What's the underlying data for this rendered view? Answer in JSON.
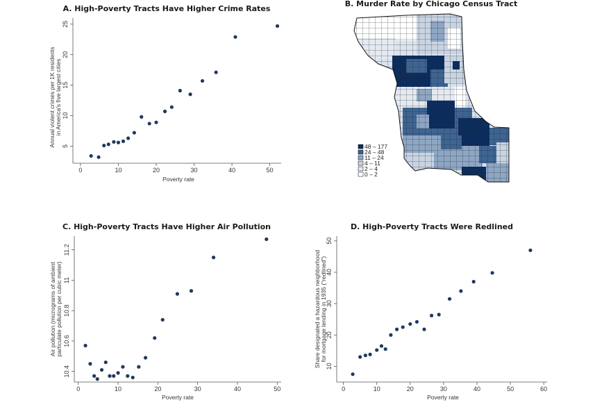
{
  "colors": {
    "dot": "#1f3a5f",
    "axis": "#555555",
    "map_dark": "#0c2d5e",
    "map_mid": "#3e6492",
    "map_light1": "#8ea6c4",
    "map_light2": "#c8d4e3",
    "map_light3": "#e4eaf2",
    "map_white": "#ffffff"
  },
  "chart_data": [
    {
      "id": "A",
      "type": "scatter",
      "title": "A. High-Poverty Tracts Have Higher Crime Rates",
      "xlabel": "Poverty rate",
      "ylabel_lines": [
        "Annual violent crimes per 1K residents",
        "in America's five largest cities"
      ],
      "xlim": [
        -2,
        53
      ],
      "ylim": [
        2.2,
        26
      ],
      "xticks": [
        0,
        10,
        20,
        30,
        40,
        50
      ],
      "yticks": [
        5,
        10,
        15,
        20,
        25
      ],
      "x": [
        2.8,
        4.8,
        6.2,
        7.4,
        8.8,
        10.0,
        11.3,
        12.6,
        14.2,
        16.1,
        18.2,
        20.0,
        22.3,
        24.1,
        26.3,
        29.0,
        32.2,
        35.8,
        40.9,
        52.0
      ],
      "y": [
        3.4,
        3.2,
        5.1,
        5.3,
        5.7,
        5.6,
        5.8,
        6.3,
        7.2,
        9.8,
        8.7,
        8.9,
        10.7,
        11.4,
        14.1,
        13.5,
        15.7,
        17.1,
        22.9,
        24.7
      ]
    },
    {
      "id": "C",
      "type": "scatter",
      "title": "C. High-Poverty Tracts Have Higher Air Pollution",
      "xlabel": "Poverty rate",
      "ylabel_lines": [
        "Air pollution (micrograms of ambient",
        "particulate pollution per cubic meter)"
      ],
      "xlim": [
        -1,
        51
      ],
      "ylim": [
        10.33,
        11.29
      ],
      "xticks": [
        0,
        10,
        20,
        30,
        40,
        50
      ],
      "yticks": [
        10.4,
        10.6,
        10.8,
        11,
        11.2
      ],
      "ytick_labels": [
        "10.4",
        "10.6",
        "10.8",
        "11",
        "11.2"
      ],
      "x": [
        1.8,
        3.0,
        4.0,
        4.8,
        5.9,
        6.9,
        7.9,
        8.9,
        10.0,
        11.2,
        12.4,
        13.7,
        15.2,
        16.9,
        19.2,
        21.2,
        24.9,
        28.4,
        34.0,
        47.3
      ],
      "y": [
        10.57,
        10.45,
        10.37,
        10.35,
        10.41,
        10.46,
        10.37,
        10.37,
        10.39,
        10.43,
        10.37,
        10.36,
        10.43,
        10.49,
        10.62,
        10.74,
        10.91,
        10.93,
        11.15,
        11.27
      ]
    },
    {
      "id": "D",
      "type": "scatter",
      "title": "D. High-Poverty Tracts Were Redlined",
      "xlabel": "Poverty rate",
      "ylabel_lines": [
        "Share designated a hazardous neighborhood",
        "for mortgage lending in 1935 (\"redlined\")"
      ],
      "xlim": [
        -2,
        61
      ],
      "ylim": [
        5,
        51.5
      ],
      "xticks": [
        0,
        10,
        20,
        30,
        40,
        50,
        60
      ],
      "yticks": [
        10,
        20,
        30,
        40,
        50
      ],
      "x": [
        2.8,
        5.0,
        6.6,
        8.0,
        10.0,
        11.4,
        12.6,
        14.2,
        16.0,
        17.8,
        20.0,
        22.0,
        24.2,
        26.4,
        28.6,
        31.8,
        35.2,
        39.0,
        44.6,
        56.0
      ],
      "y": [
        7.5,
        13.0,
        13.5,
        13.8,
        15.2,
        16.5,
        15.5,
        20.0,
        21.8,
        22.5,
        23.5,
        24.2,
        21.8,
        26.2,
        26.5,
        31.5,
        34.0,
        37.0,
        39.8,
        47.0
      ]
    }
  ],
  "map": {
    "title": "B. Murder Rate by Chicago Census Tract",
    "legend": [
      "48 – 177",
      "24 – 48",
      "11 – 24",
      "4 – 11",
      "2 – 4",
      "0 – 2"
    ]
  }
}
